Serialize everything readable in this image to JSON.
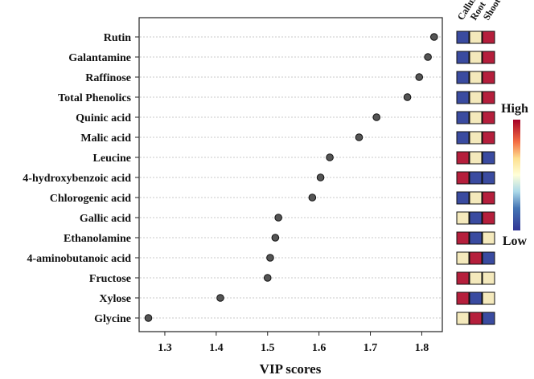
{
  "chart_data": {
    "type": "scatter",
    "xlabel": "VIP scores",
    "ylabel": "",
    "xlim": [
      1.25,
      1.84
    ],
    "xticks": [
      "1.3",
      "1.4",
      "1.5",
      "1.6",
      "1.7",
      "1.8"
    ],
    "xtick_values": [
      1.3,
      1.4,
      1.5,
      1.6,
      1.7,
      1.8
    ],
    "categories": [
      "Rutin",
      "Galantamine",
      "Raffinose",
      "Total Phenolics",
      "Quinic acid",
      "Malic acid",
      "Leucine",
      "4-hydroxybenzoic acid",
      "Chlorogenic acid",
      "Gallic acid",
      "Ethanolamine",
      "4-aminobutanoic acid",
      "Fructose",
      "Xylose",
      "Glycine"
    ],
    "values": [
      1.824,
      1.812,
      1.795,
      1.772,
      1.712,
      1.678,
      1.621,
      1.603,
      1.587,
      1.521,
      1.515,
      1.505,
      1.5,
      1.408,
      1.268
    ],
    "grid": "horizontal dotted",
    "marker_color": "#555555",
    "heatmap": {
      "columns": [
        "Callus",
        "Root",
        "Shoot"
      ],
      "levels_note": "0 = Low, 0.5 = mid, 1 = High",
      "levels": [
        [
          0,
          0.5,
          1
        ],
        [
          0,
          0.5,
          1
        ],
        [
          0,
          0.5,
          1
        ],
        [
          0,
          0.5,
          1
        ],
        [
          0,
          0.5,
          1
        ],
        [
          0,
          0.5,
          1
        ],
        [
          1,
          0.5,
          0
        ],
        [
          1,
          0,
          0
        ],
        [
          0,
          0.5,
          1
        ],
        [
          0.5,
          0,
          1
        ],
        [
          1,
          0,
          0.5
        ],
        [
          0.5,
          1,
          0
        ],
        [
          1,
          0.5,
          0.5
        ],
        [
          1,
          0,
          0.5
        ],
        [
          0.5,
          1,
          0
        ]
      ],
      "colors": {
        "low": "#3a4ba0",
        "mid": "#f4e9bc",
        "high": "#b51f3c"
      }
    },
    "colorbar": {
      "high_label": "High",
      "low_label": "Low"
    }
  }
}
